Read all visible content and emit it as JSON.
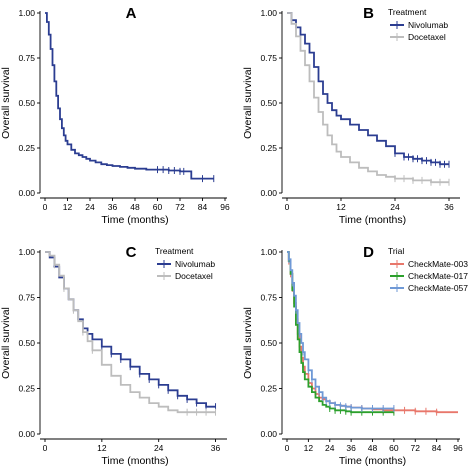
{
  "chart_data": [
    {
      "type": "line",
      "panel": "A",
      "xlabel": "Time (months)",
      "ylabel": "Overall survival",
      "xticks": [
        0,
        12,
        24,
        36,
        48,
        60,
        72,
        84,
        96
      ],
      "yticks": [
        "0.00",
        "0.25",
        "0.50",
        "0.75",
        "1.00"
      ],
      "xlim": [
        0,
        96
      ],
      "ylim": [
        0,
        1
      ],
      "legend": null,
      "series": [
        {
          "color": "#2b3d91",
          "x": [
            0,
            1,
            2,
            3,
            4,
            5,
            6,
            7,
            8,
            9,
            10,
            11,
            12,
            14,
            16,
            18,
            20,
            22,
            24,
            27,
            30,
            33,
            36,
            40,
            44,
            48,
            54,
            60,
            66,
            72,
            78,
            84,
            90
          ],
          "y": [
            1.0,
            0.95,
            0.88,
            0.8,
            0.71,
            0.62,
            0.54,
            0.47,
            0.41,
            0.36,
            0.32,
            0.29,
            0.27,
            0.24,
            0.22,
            0.21,
            0.2,
            0.19,
            0.18,
            0.17,
            0.16,
            0.155,
            0.15,
            0.145,
            0.14,
            0.135,
            0.13,
            0.13,
            0.125,
            0.12,
            0.08,
            0.08,
            0.08
          ],
          "censored_x": [
            60,
            63,
            66,
            69,
            72,
            74,
            84,
            90
          ]
        }
      ]
    },
    {
      "type": "line",
      "panel": "B",
      "xlabel": "Time (months)",
      "ylabel": "Overall survival",
      "xticks": [
        0,
        12,
        24,
        36
      ],
      "yticks": [
        "0.00",
        "0.25",
        "0.50",
        "0.75",
        "1.00"
      ],
      "xlim": [
        0,
        38
      ],
      "ylim": [
        0,
        1
      ],
      "legend": {
        "title": "Treatment",
        "placement": "top-right"
      },
      "series": [
        {
          "name": "Nivolumab",
          "color": "#2b3d91",
          "x": [
            0,
            1,
            2,
            3,
            4,
            5,
            6,
            7,
            8,
            9,
            10,
            11,
            12,
            14,
            16,
            18,
            20,
            22,
            24,
            26,
            28,
            30,
            32,
            34,
            36
          ],
          "y": [
            1.0,
            0.96,
            0.92,
            0.88,
            0.83,
            0.78,
            0.7,
            0.62,
            0.55,
            0.5,
            0.46,
            0.43,
            0.41,
            0.38,
            0.35,
            0.32,
            0.29,
            0.26,
            0.22,
            0.2,
            0.19,
            0.18,
            0.17,
            0.16,
            0.16
          ],
          "censored_x": [
            24,
            26,
            27,
            28,
            29,
            30,
            31,
            32,
            33,
            34,
            35,
            36
          ]
        },
        {
          "name": "Docetaxel",
          "color": "#bdbdbd",
          "x": [
            0,
            1,
            2,
            3,
            4,
            5,
            6,
            7,
            8,
            9,
            10,
            11,
            12,
            14,
            16,
            18,
            20,
            22,
            24,
            26,
            28,
            30,
            32,
            34,
            36
          ],
          "y": [
            1.0,
            0.94,
            0.87,
            0.79,
            0.71,
            0.62,
            0.53,
            0.45,
            0.38,
            0.32,
            0.27,
            0.23,
            0.2,
            0.17,
            0.14,
            0.12,
            0.1,
            0.09,
            0.08,
            0.08,
            0.07,
            0.07,
            0.06,
            0.06,
            0.06
          ],
          "censored_x": [
            24,
            26,
            28,
            30,
            32,
            34,
            36
          ]
        }
      ]
    },
    {
      "type": "line",
      "panel": "C",
      "xlabel": "Time (months)",
      "ylabel": "Overall survival",
      "xticks": [
        0,
        12,
        24,
        36
      ],
      "yticks": [
        "0.00",
        "0.25",
        "0.50",
        "0.75",
        "1.00"
      ],
      "xlim": [
        0,
        38
      ],
      "ylim": [
        0,
        1
      ],
      "legend": {
        "title": "Treatment",
        "placement": "top-right"
      },
      "series": [
        {
          "name": "Nivolumab",
          "color": "#2b3d91",
          "x": [
            0,
            1,
            2,
            3,
            4,
            5,
            6,
            7,
            8,
            9,
            10,
            12,
            14,
            16,
            18,
            20,
            22,
            24,
            26,
            28,
            30,
            32,
            34,
            36
          ],
          "y": [
            1.0,
            0.97,
            0.92,
            0.86,
            0.8,
            0.74,
            0.68,
            0.63,
            0.58,
            0.55,
            0.52,
            0.48,
            0.44,
            0.41,
            0.37,
            0.33,
            0.3,
            0.27,
            0.24,
            0.21,
            0.19,
            0.17,
            0.15,
            0.15
          ],
          "censored_x": [
            12,
            14,
            16,
            18,
            20,
            22,
            24,
            26,
            28,
            30,
            32,
            34,
            36
          ]
        },
        {
          "name": "Docetaxel",
          "color": "#bdbdbd",
          "x": [
            0,
            1,
            2,
            3,
            4,
            5,
            6,
            7,
            8,
            9,
            10,
            12,
            14,
            16,
            18,
            20,
            22,
            24,
            26,
            28,
            30,
            32,
            34,
            36
          ],
          "y": [
            1.0,
            0.98,
            0.93,
            0.87,
            0.8,
            0.74,
            0.68,
            0.62,
            0.56,
            0.51,
            0.46,
            0.38,
            0.32,
            0.27,
            0.23,
            0.2,
            0.17,
            0.15,
            0.13,
            0.12,
            0.12,
            0.12,
            0.12,
            0.12
          ],
          "censored_x": [
            2,
            4,
            6,
            8,
            10,
            30,
            32,
            34,
            36
          ]
        }
      ]
    },
    {
      "type": "line",
      "panel": "D",
      "xlabel": "Time (months)",
      "ylabel": "Overall survival",
      "xticks": [
        0,
        12,
        24,
        36,
        48,
        60,
        72,
        84,
        96
      ],
      "yticks": [
        "0.00",
        "0.25",
        "0.50",
        "0.75",
        "1.00"
      ],
      "xlim": [
        0,
        96
      ],
      "ylim": [
        0,
        1
      ],
      "legend": {
        "title": "Trial",
        "placement": "top-right"
      },
      "series": [
        {
          "name": "CheckMate-003",
          "color": "#e8776b",
          "x": [
            0,
            1,
            2,
            3,
            4,
            5,
            6,
            7,
            8,
            9,
            10,
            12,
            14,
            16,
            18,
            20,
            22,
            24,
            27,
            30,
            33,
            36,
            42,
            48,
            54,
            60,
            66,
            72,
            78,
            84,
            90,
            96
          ],
          "y": [
            1.0,
            0.95,
            0.88,
            0.8,
            0.72,
            0.63,
            0.55,
            0.48,
            0.42,
            0.37,
            0.33,
            0.28,
            0.25,
            0.22,
            0.2,
            0.19,
            0.18,
            0.17,
            0.16,
            0.155,
            0.15,
            0.145,
            0.14,
            0.135,
            0.13,
            0.13,
            0.13,
            0.125,
            0.125,
            0.12,
            0.12,
            0.12
          ],
          "censored_x": [
            1,
            2,
            3,
            4,
            5,
            6,
            7,
            8,
            9,
            10,
            36,
            42,
            48,
            54,
            60,
            66,
            72,
            78,
            84
          ]
        },
        {
          "name": "CheckMate-017",
          "color": "#2ca02c",
          "x": [
            0,
            1,
            2,
            3,
            4,
            5,
            6,
            7,
            8,
            9,
            10,
            12,
            14,
            16,
            18,
            20,
            22,
            24,
            27,
            30,
            33,
            36,
            42,
            48,
            54,
            60
          ],
          "y": [
            1.0,
            0.95,
            0.88,
            0.79,
            0.7,
            0.6,
            0.52,
            0.45,
            0.39,
            0.34,
            0.3,
            0.26,
            0.23,
            0.2,
            0.18,
            0.16,
            0.15,
            0.14,
            0.13,
            0.13,
            0.125,
            0.12,
            0.12,
            0.12,
            0.12,
            0.12
          ],
          "censored_x": [
            24,
            27,
            30,
            33,
            36,
            42,
            48,
            54,
            60
          ]
        },
        {
          "name": "CheckMate-057",
          "color": "#6f99d6",
          "x": [
            0,
            1,
            2,
            3,
            4,
            5,
            6,
            7,
            8,
            9,
            10,
            12,
            14,
            16,
            18,
            20,
            22,
            24,
            27,
            30,
            33,
            36,
            42,
            48,
            54,
            60
          ],
          "y": [
            1.0,
            0.96,
            0.9,
            0.83,
            0.76,
            0.68,
            0.61,
            0.55,
            0.5,
            0.45,
            0.41,
            0.35,
            0.3,
            0.26,
            0.23,
            0.2,
            0.18,
            0.17,
            0.16,
            0.155,
            0.15,
            0.145,
            0.14,
            0.14,
            0.14,
            0.14
          ],
          "censored_x": [
            1,
            3,
            5,
            7,
            9,
            12,
            14,
            16,
            18,
            20,
            22,
            24,
            27,
            30,
            33,
            36,
            42,
            48,
            54,
            60
          ]
        }
      ]
    }
  ]
}
